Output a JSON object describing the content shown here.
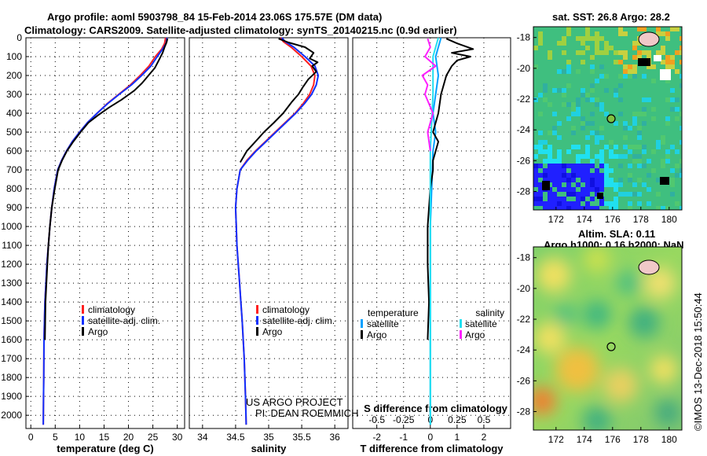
{
  "header": {
    "title_line1": "Argo profile: aoml 5903798_84 15-Feb-2014 23.06S 175.57E (DM data)",
    "title_line2": "Climatology: CARS2009. Satellite-adjusted climatology: synTS_20140215.nc (0.9d earlier)"
  },
  "colors": {
    "climatology": "#ff2020",
    "satellite_adj": "#1030ff",
    "argo": "#000000",
    "satellite_T": "#00a0ff",
    "satellite_S": "#20e0f0",
    "argo_S": "#ff20ff"
  },
  "depth_axis": {
    "ticks": [
      "0",
      "100",
      "200",
      "300",
      "400",
      "500",
      "600",
      "700",
      "800",
      "900",
      "1000",
      "1100",
      "1200",
      "1300",
      "1400",
      "1500",
      "1600",
      "1700",
      "1800",
      "1900",
      "2000"
    ],
    "ylim": [
      0,
      2070
    ],
    "grid": "dotted"
  },
  "credits": {
    "line1": "US ARGO PROJECT",
    "line2": "PI: DEAN ROEMMICH"
  },
  "timestamp": "©IMOS 13-Dec-2018 15:50:44",
  "chart_data": [
    {
      "id": "temperature",
      "type": "line",
      "xlabel": "temperature (deg C)",
      "xlim": [
        -1,
        31.5
      ],
      "xticks": [
        "0",
        "5",
        "10",
        "15",
        "20",
        "25",
        "30"
      ],
      "legend": [
        "climatology",
        "satellite-adj. clim.",
        "Argo"
      ],
      "series": [
        {
          "name": "climatology",
          "color": "#ff2020",
          "x": [
            27.6,
            27.4,
            26.8,
            25.5,
            24.2,
            22.4,
            20.4,
            18.0,
            15.6,
            13.6,
            11.6,
            10.0,
            8.5,
            7.3,
            6.3,
            5.5,
            4.8,
            4.3,
            3.9,
            3.6,
            3.3,
            3.1,
            2.9,
            2.8,
            2.7,
            2.65,
            2.6,
            2.55
          ],
          "y": [
            0,
            30,
            60,
            100,
            150,
            200,
            250,
            300,
            350,
            400,
            450,
            500,
            550,
            600,
            650,
            700,
            800,
            900,
            1000,
            1100,
            1200,
            1300,
            1400,
            1500,
            1600,
            1800,
            1900,
            2050
          ]
        },
        {
          "name": "satellite-adj. clim.",
          "color": "#1030ff",
          "x": [
            27.9,
            27.7,
            27.0,
            25.9,
            24.6,
            22.7,
            20.6,
            18.1,
            15.7,
            13.6,
            11.6,
            10.0,
            8.5,
            7.3,
            6.3,
            5.5,
            4.8,
            4.3,
            3.9,
            3.6,
            3.3,
            3.1,
            2.9,
            2.8,
            2.7,
            2.65,
            2.6,
            2.55
          ],
          "y": [
            0,
            30,
            60,
            100,
            150,
            200,
            250,
            300,
            350,
            400,
            450,
            500,
            550,
            600,
            650,
            700,
            800,
            900,
            1000,
            1100,
            1200,
            1300,
            1400,
            1500,
            1600,
            1800,
            1900,
            2050
          ]
        },
        {
          "name": "Argo",
          "color": "#000000",
          "x": [
            28.0,
            27.8,
            27.4,
            27.0,
            26.2,
            25.4,
            24.1,
            22.8,
            21.2,
            18.5,
            16.0,
            13.8,
            11.8,
            10.2,
            8.7,
            7.4,
            6.4,
            5.6,
            4.9,
            4.3,
            3.9,
            3.6,
            3.4,
            3.2,
            3.0,
            2.9
          ],
          "y": [
            5,
            25,
            50,
            80,
            120,
            160,
            200,
            240,
            280,
            330,
            370,
            410,
            450,
            500,
            550,
            600,
            650,
            700,
            800,
            900,
            1000,
            1100,
            1200,
            1300,
            1400,
            1600
          ]
        }
      ]
    },
    {
      "id": "salinity",
      "type": "line",
      "xlabel": "salinity",
      "xlim": [
        33.8,
        36.2
      ],
      "xticks": [
        "34",
        "34.5",
        "35",
        "35.5",
        "36"
      ],
      "legend": [
        "climatology",
        "satellite-adj. clim.",
        "Argo"
      ],
      "series": [
        {
          "name": "climatology",
          "color": "#ff2020",
          "x": [
            35.18,
            35.22,
            35.34,
            35.5,
            35.64,
            35.7,
            35.68,
            35.62,
            35.52,
            35.4,
            35.25,
            35.1,
            34.95,
            34.8,
            34.67,
            34.57,
            34.52,
            34.5,
            34.51,
            34.52,
            34.54,
            34.56,
            34.58,
            34.6,
            34.63,
            34.65,
            34.66
          ],
          "y": [
            0,
            20,
            50,
            100,
            150,
            200,
            250,
            300,
            350,
            400,
            450,
            500,
            550,
            600,
            650,
            700,
            800,
            900,
            1000,
            1100,
            1200,
            1300,
            1400,
            1500,
            1700,
            1900,
            2050
          ]
        },
        {
          "name": "satellite-adj. clim.",
          "color": "#1030ff",
          "x": [
            35.2,
            35.25,
            35.38,
            35.55,
            35.7,
            35.75,
            35.72,
            35.65,
            35.54,
            35.41,
            35.26,
            35.11,
            34.96,
            34.81,
            34.68,
            34.57,
            34.52,
            34.5,
            34.51,
            34.52,
            34.54,
            34.56,
            34.58,
            34.6,
            34.63,
            34.65,
            34.66
          ],
          "y": [
            0,
            20,
            50,
            100,
            150,
            200,
            250,
            300,
            350,
            400,
            450,
            500,
            550,
            600,
            650,
            700,
            800,
            900,
            1000,
            1100,
            1200,
            1300,
            1400,
            1500,
            1700,
            1900,
            2050
          ]
        },
        {
          "name": "Argo",
          "color": "#000000",
          "x": [
            35.15,
            35.3,
            35.55,
            35.68,
            35.62,
            35.74,
            35.66,
            35.72,
            35.6,
            35.52,
            35.45,
            35.35,
            35.22,
            35.08,
            34.93,
            34.8,
            34.67,
            34.57
          ],
          "y": [
            5,
            25,
            50,
            80,
            110,
            130,
            150,
            180,
            220,
            260,
            300,
            340,
            400,
            450,
            500,
            550,
            600,
            660
          ]
        }
      ]
    },
    {
      "id": "difference",
      "type": "line",
      "xlabel": "T difference from climatology",
      "xlabel_top": "S difference from climatology",
      "xlim": [
        -2.9,
        3.0
      ],
      "xticks": [
        "-2",
        "-1",
        "0",
        "1",
        "2"
      ],
      "xticks_S": [
        "-0.5",
        "-0.25",
        "0",
        "0.25",
        "0.5"
      ],
      "legend_left": {
        "title": "temperature",
        "entries": [
          "satellite",
          "Argo"
        ]
      },
      "legend_right": {
        "title": "salinity",
        "entries": [
          "satellite",
          "Argo"
        ]
      },
      "series": [
        {
          "name": "temperature satellite",
          "color": "#00a0ff",
          "x": [
            0.4,
            0.3,
            0.2,
            0.3,
            0.2,
            0.1,
            0.2,
            0.1,
            0.05,
            0.0,
            0.0,
            0.0
          ],
          "y": [
            0,
            50,
            100,
            200,
            300,
            400,
            500,
            600,
            800,
            1000,
            1500,
            2050
          ]
        },
        {
          "name": "temperature Argo",
          "color": "#000000",
          "x": [
            0.6,
            1.0,
            1.6,
            0.8,
            1.5,
            1.0,
            0.8,
            0.6,
            0.5,
            0.4,
            0.3,
            0.2,
            0.1,
            0.3,
            0.2,
            0.1,
            0.1,
            0.0,
            -0.1,
            -0.1,
            -0.05,
            -0.1
          ],
          "y": [
            5,
            30,
            60,
            80,
            100,
            120,
            150,
            200,
            250,
            300,
            400,
            450,
            500,
            550,
            600,
            650,
            700,
            800,
            1000,
            1200,
            1400,
            1600
          ]
        },
        {
          "name": "salinity satellite",
          "color": "#20e0f0",
          "x": [
            0.3,
            0.1,
            0.1,
            0.0,
            0.0,
            0.0,
            0.0
          ],
          "y": [
            0,
            100,
            300,
            600,
            1000,
            1500,
            2050
          ]
        },
        {
          "name": "salinity Argo",
          "color": "#ff20ff",
          "x": [
            -0.1,
            0.0,
            -0.2,
            0.2,
            -0.3,
            -0.1,
            -0.2,
            0.1,
            -0.1,
            0.0
          ],
          "y": [
            5,
            50,
            100,
            150,
            200,
            250,
            300,
            400,
            500,
            600
          ]
        }
      ]
    }
  ],
  "maps": {
    "sst": {
      "title": "sat. SST: 26.8 Argo: 28.2",
      "yticks": [
        "-18",
        "-20",
        "-22",
        "-24",
        "-26",
        "-28"
      ],
      "xticks": [
        "172",
        "174",
        "176",
        "178",
        "180"
      ]
    },
    "sla": {
      "title_line1": "Altim. SLA: 0.11",
      "title_line2": "Argo h1000: 0.16 h2000: NaN",
      "yticks": [
        "-18",
        "-20",
        "-22",
        "-24",
        "-26",
        "-28"
      ],
      "xticks": [
        "172",
        "174",
        "176",
        "178",
        "180"
      ]
    }
  }
}
